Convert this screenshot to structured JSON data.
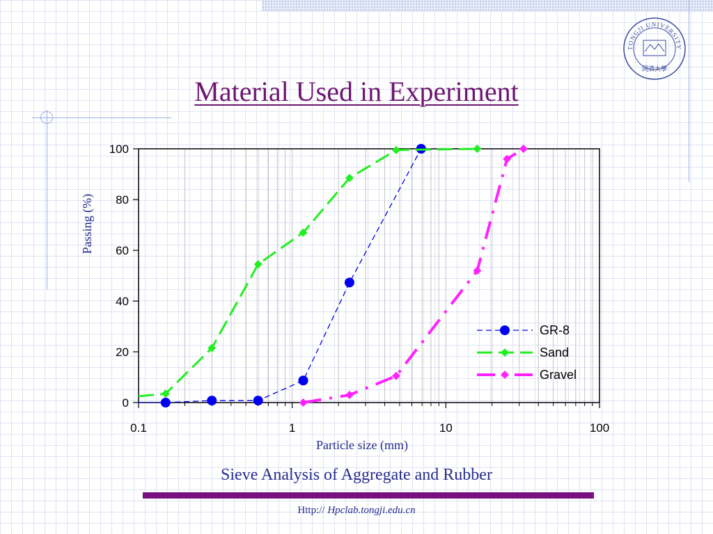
{
  "slide": {
    "title": "Material Used in Experiment",
    "caption": "Sieve Analysis of Aggregate and Rubber",
    "footer_prefix": "Http://",
    "footer_url": "Hpclab.tongji.edu.cn",
    "logo_text": "TONGJI UNIVERSITY",
    "logo_chinese": "同濟大學",
    "colors": {
      "title": "#6e1570",
      "text": "#262c8c",
      "bar": "#7a0f80"
    }
  },
  "chart_data": {
    "type": "line",
    "title": "",
    "xlabel": "Particle size (mm)",
    "ylabel": "Passing (%)",
    "x_scale": "log",
    "xlim": [
      0.1,
      100
    ],
    "ylim": [
      0,
      100
    ],
    "x_ticks": [
      "0.1",
      "1",
      "10",
      "100"
    ],
    "y_ticks": [
      "0",
      "20",
      "40",
      "60",
      "80",
      "100"
    ],
    "grid": "vertical-minor",
    "legend_position": "bottom-right",
    "series": [
      {
        "name": "GR-8",
        "color": "#0000ee",
        "dash": "fine",
        "marker": "circle",
        "points": [
          [
            0.1,
            0
          ],
          [
            0.15,
            0
          ],
          [
            0.3,
            0.8
          ],
          [
            0.6,
            0.8
          ],
          [
            1.18,
            8.7
          ],
          [
            2.36,
            47.3
          ],
          [
            6.9,
            100
          ]
        ]
      },
      {
        "name": "Sand",
        "color": "#22ee22",
        "dash": "long",
        "marker": "diamond",
        "points": [
          [
            0.1,
            2.5
          ],
          [
            0.15,
            3.5
          ],
          [
            0.3,
            21.5
          ],
          [
            0.6,
            54.5
          ],
          [
            1.18,
            67
          ],
          [
            2.36,
            88.5
          ],
          [
            4.75,
            99.5
          ],
          [
            16,
            100
          ]
        ]
      },
      {
        "name": "Gravel",
        "color": "#ff22ff",
        "dash": "dashdot",
        "marker": "diamond",
        "points": [
          [
            1.18,
            0
          ],
          [
            2.36,
            3
          ],
          [
            4.75,
            10.5
          ],
          [
            16,
            52
          ],
          [
            25,
            96
          ],
          [
            32,
            100
          ]
        ]
      }
    ]
  }
}
